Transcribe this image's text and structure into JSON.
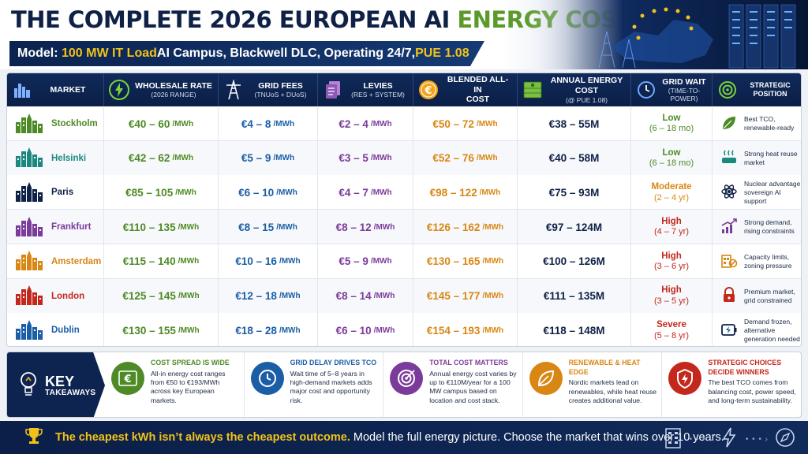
{
  "header": {
    "title_part1": "THE COMPLETE 2026 EUROPEAN AI ",
    "title_part2": "ENERGY COST MATRIX",
    "subtitle_label": "Model: ",
    "subtitle_highlight1": "100 MW IT Load",
    "subtitle_mid": " AI Campus, Blackwell DLC, Operating 24/7, ",
    "subtitle_highlight2": "PUE 1.08"
  },
  "columns": [
    {
      "main": "MARKET",
      "sub": "",
      "icon": "city-skyline-icon"
    },
    {
      "main": "WHOLESALE RATE",
      "sub": "(2026 RANGE)",
      "icon": "lightning-icon"
    },
    {
      "main": "GRID FEES",
      "sub": "(TNUoS + DUoS)",
      "icon": "power-pylon-icon"
    },
    {
      "main": "LEVIES",
      "sub": "(RES + SYSTEM)",
      "icon": "documents-icon"
    },
    {
      "main": "BLENDED ALL-IN",
      "sub": "COST",
      "icon": "euro-coin-icon"
    },
    {
      "main": "ANNUAL ENERGY COST",
      "sub": "(@ PUE 1.08)",
      "icon": "money-stack-icon"
    },
    {
      "main": "GRID WAIT",
      "sub": "(TIME-TO-POWER)",
      "icon": "clock-icon"
    },
    {
      "main": "STRATEGIC POSITION",
      "sub": "",
      "icon": "target-icon"
    }
  ],
  "unit": "/MWh",
  "rows": [
    {
      "market": "Stockholm",
      "wholesale": "€40 – 60",
      "grid": "€4 – 8",
      "levies": "€2 – 4",
      "blended": "€50 – 72",
      "annual": "€38 – 55M",
      "wait": "Low",
      "wait_range": "(6 – 18 mo)",
      "position": "Best TCO, renewable-ready",
      "color": "#4e8a25",
      "wait_color": "#4e8a25",
      "position_icon": "leaf-icon"
    },
    {
      "market": "Helsinki",
      "wholesale": "€42 – 62",
      "grid": "€5 – 9",
      "levies": "€3 – 5",
      "blended": "€52 – 76",
      "annual": "€40 – 58M",
      "wait": "Low",
      "wait_range": "(6 – 18 mo)",
      "position": "Strong heat reuse market",
      "color": "#1a8a80",
      "wait_color": "#4e8a25",
      "position_icon": "heat-icon"
    },
    {
      "market": "Paris",
      "wholesale": "€85 – 105",
      "grid": "€6 – 10",
      "levies": "€4 – 7",
      "blended": "€98 – 122",
      "annual": "€75 – 93M",
      "wait": "Moderate",
      "wait_range": "(2 – 4 yr)",
      "position": "Nuclear advantage, sovereign AI support",
      "color": "#0f2147",
      "wait_color": "#d98714",
      "position_icon": "atom-icon"
    },
    {
      "market": "Frankfurt",
      "wholesale": "€110 – 135",
      "grid": "€8 – 15",
      "levies": "€8 – 12",
      "blended": "€126 – 162",
      "annual": "€97 – 124M",
      "wait": "High",
      "wait_range": "(4 – 7 yr)",
      "position": "Strong demand, rising constraints",
      "color": "#7a3b9a",
      "wait_color": "#c4271c",
      "position_icon": "rising-chart-icon"
    },
    {
      "market": "Amsterdam",
      "wholesale": "€115 – 140",
      "grid": "€10 – 16",
      "levies": "€5 – 9",
      "blended": "€130 – 165",
      "annual": "€100 – 126M",
      "wait": "High",
      "wait_range": "(3 – 6 yr)",
      "position": "Capacity limits, zoning pressure",
      "color": "#d98714",
      "wait_color": "#c4271c",
      "position_icon": "zoning-icon"
    },
    {
      "market": "London",
      "wholesale": "€125 – 145",
      "grid": "€12 – 18",
      "levies": "€8 – 14",
      "blended": "€145 – 177",
      "annual": "€111 – 135M",
      "wait": "High",
      "wait_range": "(3 – 5 yr)",
      "position": "Premium market, grid constrained",
      "color": "#c4271c",
      "wait_color": "#c4271c",
      "position_icon": "lock-icon"
    },
    {
      "market": "Dublin",
      "wholesale": "€130 – 155",
      "grid": "€18 – 28",
      "levies": "€6 – 10",
      "blended": "€154 – 193",
      "annual": "€118 – 148M",
      "wait": "Severe",
      "wait_range": "(5 – 8 yr)",
      "position": "Demand frozen, alternative generation needed",
      "color": "#1b5ea6",
      "wait_color": "#c4271c",
      "position_icon": "battery-icon"
    }
  ],
  "takeaways": {
    "heading": "KEY",
    "heading_sub": "TAKEAWAYS",
    "items": [
      {
        "title": "COST SPREAD IS WIDE",
        "text": "All-in energy cost ranges from €50 to €193/MWh across key European markets.",
        "color": "#4e8a25",
        "icon": "euro-bill-icon"
      },
      {
        "title": "GRID DELAY DRIVES TCO",
        "text": "Wait time of 5–8 years in high-demand markets adds major cost and opportunity risk.",
        "color": "#1b5ea6",
        "icon": "clock-icon"
      },
      {
        "title": "TOTAL COST MATTERS",
        "text": "Annual energy cost varies by up to €110M/year for a 100 MW campus based on location and cost stack.",
        "color": "#7a3b9a",
        "icon": "target-icon"
      },
      {
        "title": "RENEWABLE & HEAT EDGE",
        "text": "Nordic markets lead on renewables, while heat reuse creates additional value.",
        "color": "#d98714",
        "icon": "leaf-icon"
      },
      {
        "title": "STRATEGIC CHOICES DECIDE WINNERS",
        "text": "The best TCO comes from balancing cost, power speed, and long-term sustainability.",
        "color": "#c4271c",
        "icon": "shield-lightning-icon"
      }
    ]
  },
  "footer": {
    "highlight": "The cheapest kWh isn’t always the cheapest outcome.",
    "rest": " Model the full energy picture. Choose the market that wins over 10 years.",
    "icon": "trophy-icon"
  }
}
